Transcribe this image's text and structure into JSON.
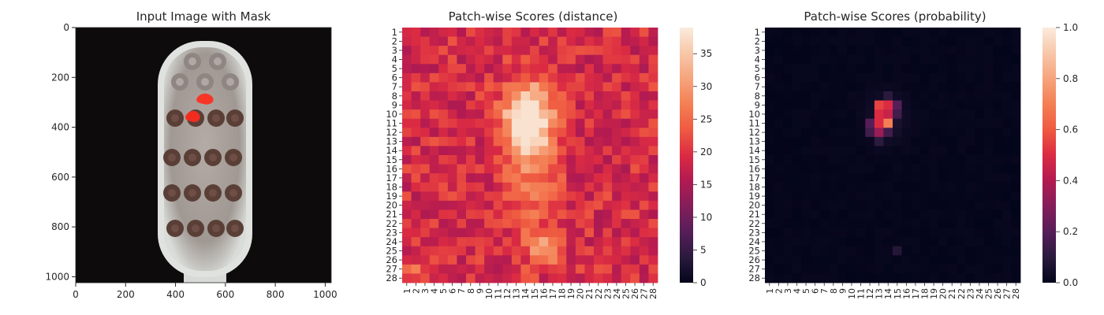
{
  "figure": {
    "panel1_title": "Input Image with Mask",
    "panel2_title": "Patch-wise Scores (distance)",
    "panel3_title": "Patch-wise Scores (probability)"
  },
  "chart_data": [
    {
      "type": "image",
      "title": "Input Image with Mask",
      "xlim": [
        0,
        1024
      ],
      "ylim": [
        1024,
        0
      ],
      "xticks": [
        0,
        200,
        400,
        600,
        800,
        1000
      ],
      "yticks": [
        0,
        200,
        400,
        600,
        800,
        1000
      ],
      "content": "toothbrush head with red anomaly mask overlay"
    },
    {
      "type": "heatmap",
      "title": "Patch-wise Scores (distance)",
      "rows": 28,
      "cols": 28,
      "row_labels": [
        "1",
        "2",
        "3",
        "4",
        "5",
        "6",
        "7",
        "8",
        "9",
        "10",
        "11",
        "12",
        "13",
        "14",
        "15",
        "16",
        "17",
        "18",
        "19",
        "20",
        "21",
        "22",
        "23",
        "24",
        "25",
        "26",
        "27",
        "28"
      ],
      "col_labels": [
        "1",
        "2",
        "3",
        "4",
        "5",
        "6",
        "7",
        "8",
        "9",
        "10",
        "11",
        "12",
        "13",
        "14",
        "15",
        "16",
        "17",
        "18",
        "19",
        "20",
        "21",
        "22",
        "23",
        "24",
        "25",
        "26",
        "27",
        "28"
      ],
      "colorbar_range": [
        0,
        39
      ],
      "colorbar_ticks": [
        0,
        5,
        10,
        15,
        20,
        25,
        30,
        35
      ],
      "colormap": "rocket",
      "peak_region": {
        "rows": [
          9,
          12
        ],
        "cols": [
          13,
          16
        ],
        "value": 38
      },
      "secondary_peak": {
        "rows": [
          24,
          26
        ],
        "cols": [
          15,
          17
        ],
        "value": 32
      }
    },
    {
      "type": "heatmap",
      "title": "Patch-wise Scores (probability)",
      "rows": 28,
      "cols": 28,
      "row_labels": [
        "1",
        "2",
        "3",
        "4",
        "5",
        "6",
        "7",
        "8",
        "9",
        "10",
        "11",
        "12",
        "13",
        "14",
        "15",
        "16",
        "17",
        "18",
        "19",
        "20",
        "21",
        "22",
        "23",
        "24",
        "25",
        "26",
        "27",
        "28"
      ],
      "col_labels": [
        "1",
        "2",
        "3",
        "4",
        "5",
        "6",
        "7",
        "8",
        "9",
        "10",
        "11",
        "12",
        "13",
        "14",
        "15",
        "16",
        "17",
        "18",
        "19",
        "20",
        "21",
        "22",
        "23",
        "24",
        "25",
        "26",
        "27",
        "28"
      ],
      "colorbar_range": [
        0.0,
        1.0
      ],
      "colorbar_ticks": [
        "0.0",
        "0.2",
        "0.4",
        "0.6",
        "0.8",
        "1.0"
      ],
      "colormap": "rocket",
      "hot_cells": [
        {
          "row": 9,
          "col": 13,
          "value": 0.55
        },
        {
          "row": 9,
          "col": 14,
          "value": 0.5
        },
        {
          "row": 10,
          "col": 13,
          "value": 0.5
        },
        {
          "row": 10,
          "col": 14,
          "value": 0.45
        },
        {
          "row": 11,
          "col": 13,
          "value": 0.5
        },
        {
          "row": 11,
          "col": 14,
          "value": 0.7
        },
        {
          "row": 12,
          "col": 13,
          "value": 0.35
        },
        {
          "row": 12,
          "col": 14,
          "value": 0.15
        },
        {
          "row": 11,
          "col": 12,
          "value": 0.2
        },
        {
          "row": 12,
          "col": 12,
          "value": 0.15
        },
        {
          "row": 9,
          "col": 15,
          "value": 0.2
        },
        {
          "row": 10,
          "col": 15,
          "value": 0.15
        },
        {
          "row": 8,
          "col": 14,
          "value": 0.1
        },
        {
          "row": 13,
          "col": 13,
          "value": 0.1
        },
        {
          "row": 25,
          "col": 15,
          "value": 0.08
        }
      ]
    }
  ]
}
